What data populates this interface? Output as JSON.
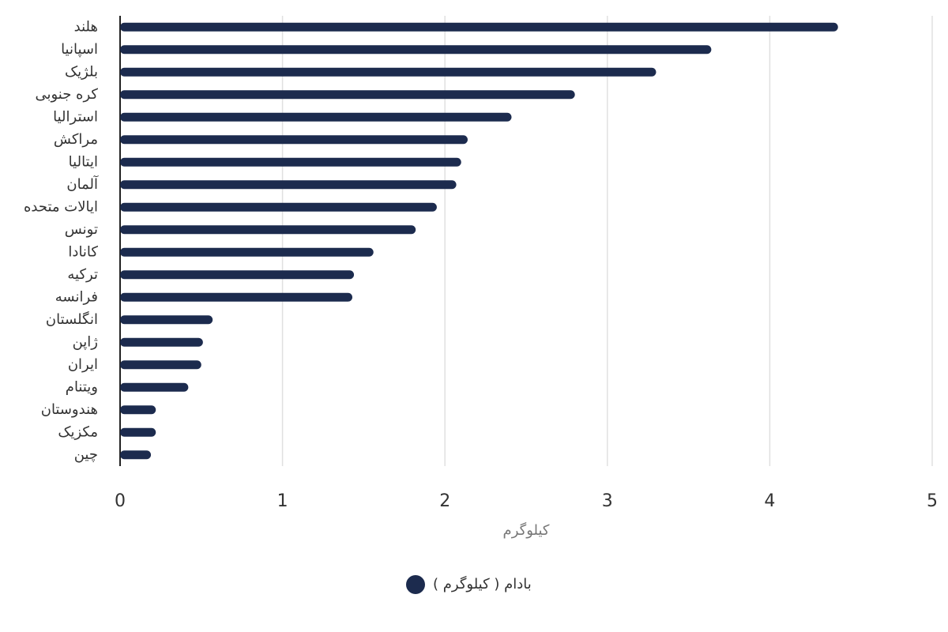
{
  "chart_data": {
    "type": "bar",
    "orientation": "horizontal",
    "x_label": "کیلوگرم",
    "categories": [
      "هلند",
      "اسپانیا",
      "بلژیک",
      "کره جنوبی",
      "استرالیا",
      "مراکش",
      "ایتالیا",
      "آلمان",
      "ایالات متحده",
      "تونس",
      "کانادا",
      "ترکیه",
      "فرانسه",
      "انگلستان",
      "ژاپن",
      "ایران",
      "ویتنام",
      "هندوستان",
      "مکزیک",
      "چین"
    ],
    "series": [
      {
        "name": "بادام ( کیلوگرم )",
        "color": "#1c2b4e",
        "values": [
          4.42,
          3.64,
          3.3,
          2.8,
          2.41,
          2.14,
          2.1,
          2.07,
          1.95,
          1.82,
          1.56,
          1.44,
          1.43,
          0.57,
          0.51,
          0.5,
          0.42,
          0.22,
          0.22,
          0.19
        ]
      }
    ],
    "xlim": [
      0,
      5
    ],
    "xticks": [
      0,
      1,
      2,
      3,
      4,
      5
    ],
    "grid": true,
    "legend": "bottom"
  }
}
